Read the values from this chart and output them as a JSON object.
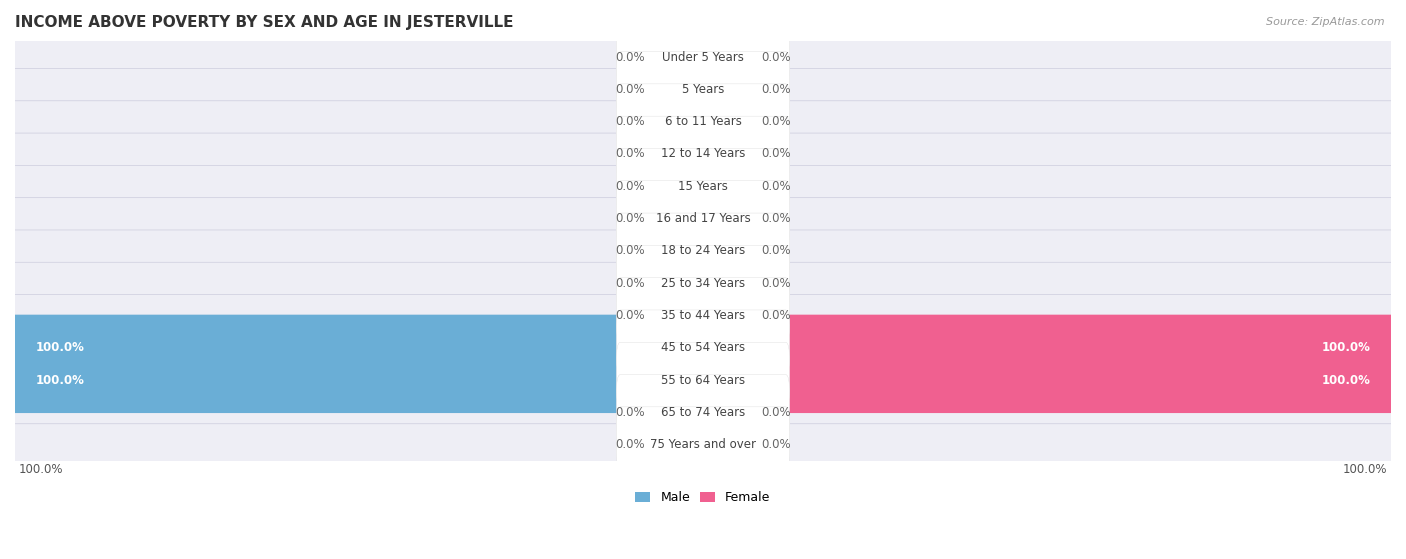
{
  "title": "INCOME ABOVE POVERTY BY SEX AND AGE IN JESTERVILLE",
  "source": "Source: ZipAtlas.com",
  "categories": [
    "Under 5 Years",
    "5 Years",
    "6 to 11 Years",
    "12 to 14 Years",
    "15 Years",
    "16 and 17 Years",
    "18 to 24 Years",
    "25 to 34 Years",
    "35 to 44 Years",
    "45 to 54 Years",
    "55 to 64 Years",
    "65 to 74 Years",
    "75 Years and over"
  ],
  "male_values": [
    0.0,
    0.0,
    0.0,
    0.0,
    0.0,
    0.0,
    0.0,
    0.0,
    0.0,
    100.0,
    100.0,
    0.0,
    0.0
  ],
  "female_values": [
    0.0,
    0.0,
    0.0,
    0.0,
    0.0,
    0.0,
    0.0,
    0.0,
    0.0,
    100.0,
    100.0,
    0.0,
    0.0
  ],
  "male_color_light": "#a8c8e8",
  "female_color_light": "#f0a0b8",
  "male_color_full": "#6aaed6",
  "female_color_full": "#f06090",
  "row_bg_color": "#eeeef5",
  "row_gap_color": "#ffffff",
  "title_fontsize": 11,
  "label_fontsize": 8.5,
  "value_fontsize": 8.5,
  "max_value": 100.0,
  "legend_male": "Male",
  "legend_female": "Female",
  "bottom_left_label": "100.0%",
  "bottom_right_label": "100.0%"
}
